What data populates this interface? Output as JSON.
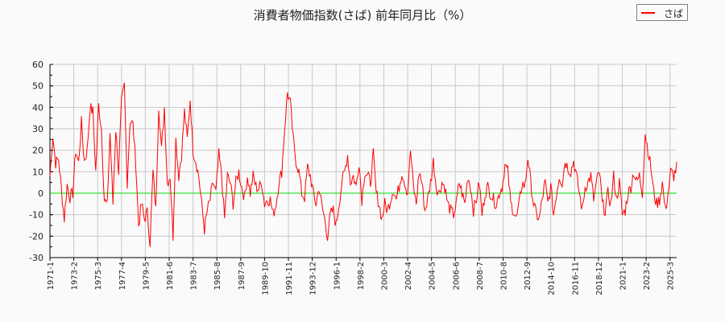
{
  "chart": {
    "title": "消費者物価指数(さば) 前年同月比（%）",
    "legend_label": "さば",
    "colors": {
      "series": "#ff0000",
      "zero_line": "#00dd00",
      "grid": "#c8c8c8",
      "axis": "#000000",
      "background": "#fafafa"
    }
  },
  "chart_data": {
    "type": "line",
    "title": "消費者物価指数(さば) 前年同月比（%）",
    "xlabel": "",
    "ylabel": "",
    "ylim": [
      -30,
      60
    ],
    "yticks": [
      60,
      50,
      40,
      30,
      20,
      10,
      0,
      -10,
      -20,
      -30
    ],
    "xticks": [
      "1971-1",
      "1973-2",
      "1975-3",
      "1977-4",
      "1979-5",
      "1981-6",
      "1983-7",
      "1985-8",
      "1987-9",
      "1989-10",
      "1991-11",
      "1993-12",
      "1996-1",
      "1998-2",
      "2000-3",
      "2002-4",
      "2004-5",
      "2006-6",
      "2008-7",
      "2010-8",
      "2012-9",
      "2014-10",
      "2016-11",
      "2018-12",
      "2021-1",
      "2023-2",
      "2025-3"
    ],
    "grid": true,
    "legend_position": "top-right",
    "series": [
      {
        "name": "さば",
        "x_start": "1971-1",
        "step_months": 3,
        "values": [
          8,
          27,
          14,
          16,
          2,
          -12,
          4,
          -2,
          0,
          20,
          14,
          33,
          15,
          20,
          40,
          38,
          10,
          41,
          30,
          -3,
          -6,
          28,
          -5,
          30,
          10,
          42,
          50,
          5,
          34,
          32,
          14,
          -15,
          -5,
          -12,
          -9,
          -23,
          10,
          -8,
          41,
          20,
          40,
          5,
          8,
          -20,
          25,
          8,
          18,
          38,
          25,
          44,
          20,
          15,
          8,
          -5,
          -17,
          -8,
          -3,
          5,
          0,
          18,
          8,
          -12,
          8,
          5,
          -5,
          5,
          10,
          3,
          -2,
          8,
          0,
          8,
          3,
          2,
          5,
          -5,
          -3,
          -3,
          -10,
          -5,
          5,
          10,
          30,
          47,
          42,
          25,
          15,
          10,
          0,
          -2,
          12,
          8,
          0,
          -5,
          3,
          -6,
          -12,
          -20,
          -10,
          -8,
          -15,
          -5,
          5,
          10,
          18,
          5,
          8,
          3,
          15,
          -3,
          10,
          8,
          5,
          18,
          0,
          -5,
          -12,
          -5,
          -8,
          -3,
          2,
          -3,
          3,
          10,
          5,
          0,
          20,
          3,
          -5,
          10,
          5,
          -8,
          -3,
          5,
          15,
          3,
          0,
          5,
          3,
          -5,
          -8,
          -10,
          -5,
          5,
          0,
          -5,
          8,
          3,
          -8,
          -3,
          5,
          -10,
          0,
          3,
          0,
          -3,
          -5,
          0,
          3,
          13,
          10,
          -5,
          -8,
          -12,
          -5,
          5,
          3,
          17,
          5,
          -5,
          -10,
          -12,
          -3,
          5,
          -5,
          3,
          -10,
          0,
          8,
          5,
          15,
          12,
          10,
          15,
          8,
          0,
          -8,
          3,
          5,
          8,
          -3,
          5,
          10,
          -5,
          -8,
          0,
          -5,
          8,
          -3,
          5,
          -10,
          -8,
          0,
          3,
          10,
          5,
          8,
          0,
          28,
          20,
          12,
          0,
          -5,
          -3,
          5,
          -8,
          0,
          10,
          8,
          12,
          5,
          12,
          20
        ]
      }
    ]
  }
}
